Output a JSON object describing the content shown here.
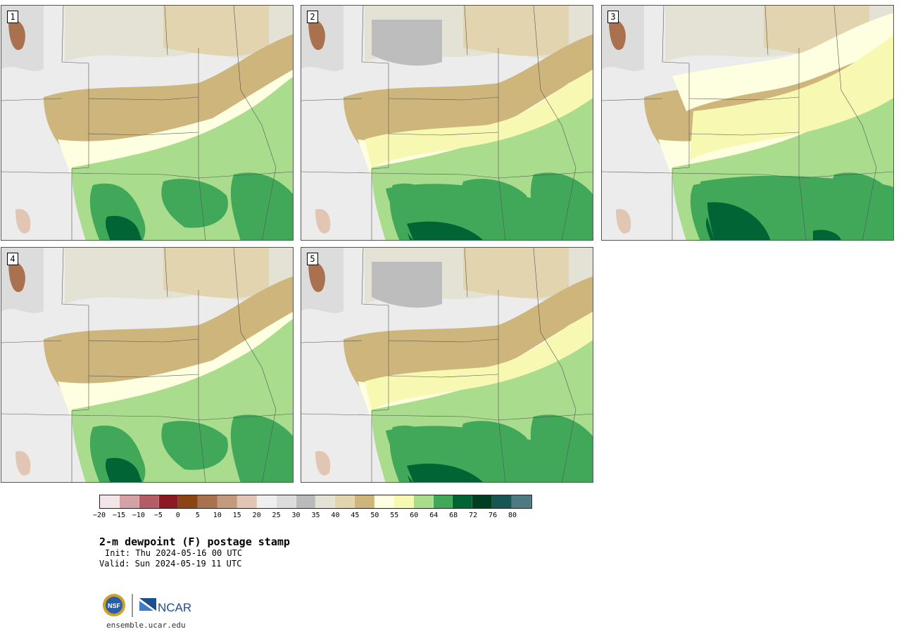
{
  "panels": [
    {
      "label": "1",
      "variant": 1
    },
    {
      "label": "2",
      "variant": 2
    },
    {
      "label": "3",
      "variant": 3
    },
    {
      "label": "4",
      "variant": 1
    },
    {
      "label": "5",
      "variant": 2
    }
  ],
  "legend": {
    "colors": [
      "#f3e6e8",
      "#d4a1a6",
      "#b35e66",
      "#8b1a22",
      "#8b4513",
      "#a9714e",
      "#c49a7e",
      "#e2c6b4",
      "#efefef",
      "#dcdcdc",
      "#bababa",
      "#e3e2d4",
      "#e3d4b0",
      "#cdb57c",
      "#fefee0",
      "#f7f9b3",
      "#a9dd8d",
      "#41a85a",
      "#006434",
      "#013d20",
      "#175654",
      "#4e7b81"
    ],
    "ticks": [
      "−20",
      "−15",
      "−10",
      "−5",
      "0",
      "5",
      "10",
      "15",
      "20",
      "25",
      "30",
      "35",
      "40",
      "45",
      "50",
      "55",
      "60",
      "64",
      "68",
      "72",
      "76",
      "80"
    ]
  },
  "title": "2-m dewpoint (F) postage stamp",
  "init": "Init: Thu 2024-05-16 00 UTC",
  "valid": "Valid: Sun 2024-05-19 11 UTC",
  "logos": {
    "nsf": "NSF",
    "ncar": "NCAR"
  },
  "site": "ensemble.ucar.edu"
}
